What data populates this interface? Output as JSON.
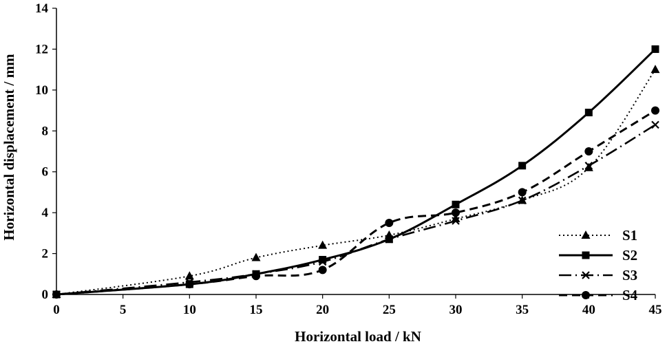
{
  "chart_data": {
    "type": "line",
    "title": "",
    "xlabel": "Horizontal load  / kN",
    "ylabel": "Horizontal displacement  / mm",
    "xlim": [
      0,
      45
    ],
    "ylim": [
      0,
      14
    ],
    "xticks": [
      "0",
      "5",
      "10",
      "15",
      "20",
      "25",
      "30",
      "35",
      "40",
      "45"
    ],
    "yticks": [
      "0",
      "2",
      "4",
      "6",
      "8",
      "10",
      "12",
      "14"
    ],
    "grid": false,
    "legend_position": "bottom-right",
    "series": [
      {
        "name": "S1",
        "line_style": "dotted",
        "marker": "triangle",
        "color": "#000000",
        "x": [
          0,
          10,
          15,
          20,
          25,
          30,
          35,
          40,
          45
        ],
        "y": [
          0,
          0.9,
          1.8,
          2.4,
          2.9,
          3.7,
          4.6,
          6.2,
          11.0
        ]
      },
      {
        "name": "S2",
        "line_style": "solid",
        "marker": "square",
        "color": "#000000",
        "x": [
          0,
          10,
          15,
          20,
          25,
          30,
          35,
          40,
          45
        ],
        "y": [
          0,
          0.5,
          1.0,
          1.7,
          2.7,
          4.4,
          6.3,
          8.9,
          12.0
        ]
      },
      {
        "name": "S3",
        "line_style": "dash-dot",
        "marker": "x",
        "color": "#000000",
        "x": [
          0,
          10,
          15,
          20,
          25,
          30,
          35,
          40,
          45
        ],
        "y": [
          0,
          0.6,
          1.0,
          1.6,
          2.7,
          3.6,
          4.6,
          6.3,
          8.3
        ]
      },
      {
        "name": "S4",
        "line_style": "dashed",
        "marker": "circle",
        "color": "#000000",
        "x": [
          0,
          10,
          15,
          20,
          25,
          30,
          35,
          40,
          45
        ],
        "y": [
          0,
          0.5,
          0.9,
          1.2,
          3.5,
          4.0,
          5.0,
          7.0,
          9.0
        ]
      }
    ]
  }
}
